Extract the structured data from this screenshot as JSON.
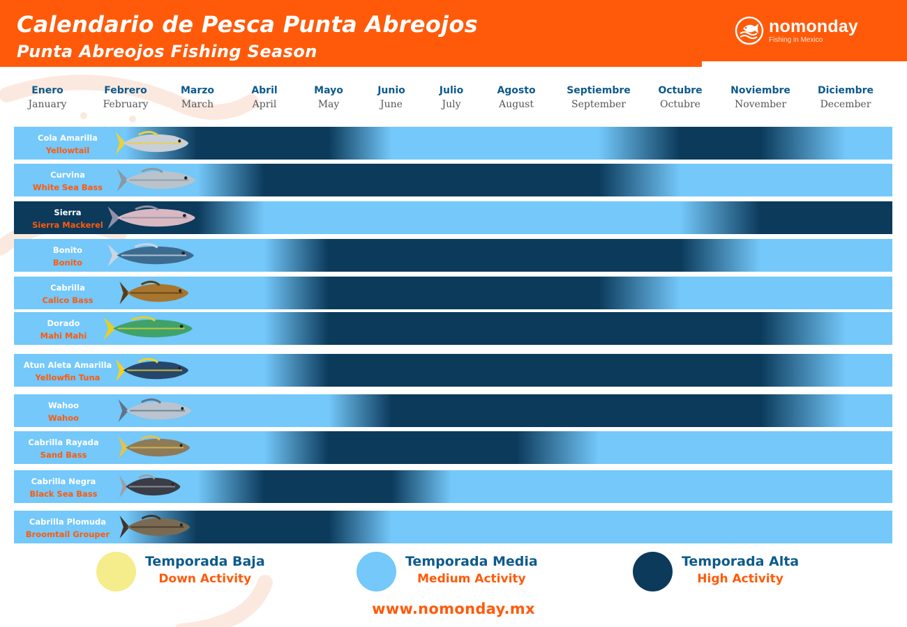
{
  "header": {
    "title": "Calendario de Pesca Punta Abreojos",
    "subtitle": "Punta Abreojos Fishing Season"
  },
  "logo": {
    "name": "nomonday",
    "tagline": "Fishing in Mexico"
  },
  "colors": {
    "header": "#ff5a0a",
    "accent_text": "#ff5a0a",
    "month_es": "#0d5a8c",
    "low": "#f5ec8c",
    "medium": "#74c8fa",
    "high": "#0b3a5b"
  },
  "chart_data": {
    "type": "heatmap",
    "categories_es": [
      "Enero",
      "Febrero",
      "Marzo",
      "Abril",
      "Mayo",
      "Junio",
      "Julio",
      "Agosto",
      "Septiembre",
      "Octubre",
      "Noviembre",
      "Diciembre"
    ],
    "categories_en": [
      "January",
      "February",
      "March",
      "April",
      "May",
      "June",
      "July",
      "August",
      "September",
      "Octubre",
      "November",
      "December"
    ],
    "scale": {
      "medium": 1,
      "high": 2
    },
    "series": [
      {
        "name_es": "Cola Amarilla",
        "name_en": "Yellowtail",
        "fish_icon": "yellowtail-icon",
        "values": [
          1,
          1,
          2,
          2,
          2,
          1,
          1,
          1,
          1,
          2,
          2,
          1
        ]
      },
      {
        "name_es": "Curvina",
        "name_en": "White Sea Bass",
        "fish_icon": "white-sea-bass-icon",
        "values": [
          1,
          1,
          1,
          2,
          2,
          2,
          2,
          2,
          2,
          1,
          1,
          1
        ]
      },
      {
        "name_es": "Sierra",
        "name_en": "Sierra Mackerel",
        "fish_icon": "sierra-mackerel-icon",
        "values": [
          2,
          2,
          2,
          1,
          1,
          1,
          1,
          1,
          1,
          1,
          2,
          2
        ]
      },
      {
        "name_es": "Bonito",
        "name_en": "Bonito",
        "fish_icon": "bonito-icon",
        "values": [
          1,
          1,
          1,
          1,
          2,
          2,
          2,
          2,
          2,
          2,
          1,
          1
        ]
      },
      {
        "name_es": "Cabrilla",
        "name_en": "Calico Bass",
        "fish_icon": "calico-bass-icon",
        "values": [
          1,
          1,
          1,
          1,
          2,
          2,
          2,
          2,
          2,
          1,
          1,
          1
        ]
      },
      {
        "name_es": "Dorado",
        "name_en": "Mahi Mahi",
        "fish_icon": "mahi-mahi-icon",
        "values": [
          1,
          1,
          1,
          1,
          2,
          2,
          2,
          2,
          2,
          2,
          2,
          1
        ]
      },
      {
        "name_es": "Atun Aleta Amarilla",
        "name_en": "Yellowfin Tuna",
        "fish_icon": "yellowfin-tuna-icon",
        "values": [
          1,
          1,
          1,
          1,
          2,
          2,
          2,
          2,
          2,
          2,
          2,
          1
        ]
      },
      {
        "name_es": "Wahoo",
        "name_en": "Wahoo",
        "fish_icon": "wahoo-icon",
        "values": [
          1,
          1,
          1,
          1,
          1,
          2,
          2,
          2,
          2,
          2,
          2,
          1
        ]
      },
      {
        "name_es": "Cabrilla Rayada",
        "name_en": "Sand Bass",
        "fish_icon": "sand-bass-icon",
        "values": [
          1,
          1,
          1,
          1,
          2,
          2,
          2,
          2,
          1,
          1,
          1,
          1
        ]
      },
      {
        "name_es": "Cabrilla Negra",
        "name_en": "Black Sea Bass",
        "fish_icon": "black-sea-bass-icon",
        "values": [
          1,
          1,
          1,
          2,
          2,
          2,
          1,
          1,
          1,
          1,
          1,
          1
        ]
      },
      {
        "name_es": "Cabrilla Plomuda",
        "name_en": "Broomtail Grouper",
        "fish_icon": "broomtail-grouper-icon",
        "values": [
          1,
          1,
          2,
          2,
          2,
          1,
          1,
          1,
          1,
          1,
          1,
          1
        ]
      }
    ]
  },
  "legend": [
    {
      "es": "Temporada Baja",
      "en": "Down Activity",
      "color": "#f5ec8c"
    },
    {
      "es": "Temporada Media",
      "en": "Medium Activity",
      "color": "#74c8fa"
    },
    {
      "es": "Temporada Alta",
      "en": "High Activity",
      "color": "#0b3a5b"
    }
  ],
  "footer": {
    "website": "www.nomonday.mx"
  }
}
